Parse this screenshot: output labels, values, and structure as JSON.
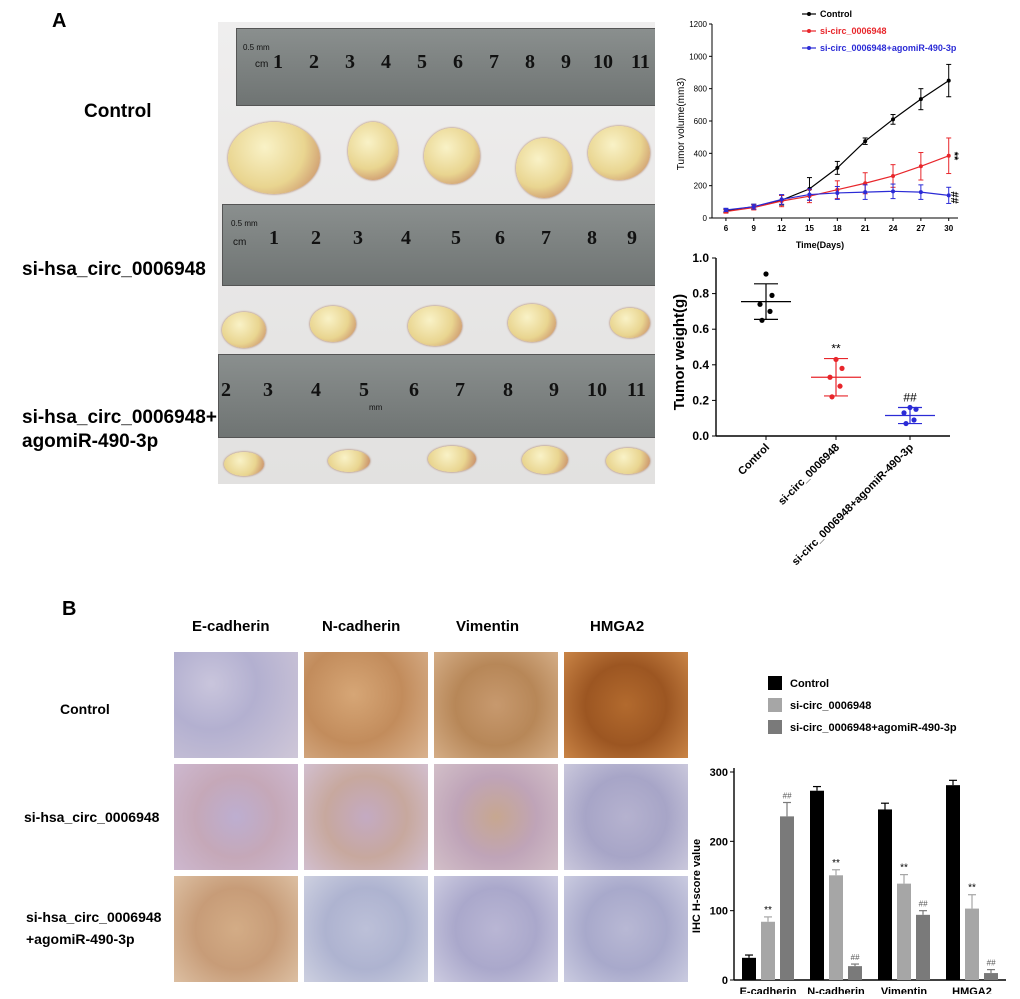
{
  "panels": {
    "a": "A",
    "b": "B"
  },
  "panel_a": {
    "row_labels": {
      "control": "Control",
      "si": "si-hsa_circ_0006948",
      "si_ago_line1": "si-hsa_circ_0006948+",
      "si_ago_line2": "agomiR-490-3p"
    },
    "ruler1": {
      "unit_mm": "0.5 mm",
      "unit_cm": "cm",
      "numbers": [
        "1",
        "2",
        "3",
        "4",
        "5",
        "6",
        "7",
        "8",
        "9",
        "10",
        "11"
      ]
    },
    "ruler2": {
      "unit_mm": "0.5 mm",
      "unit_cm": "cm",
      "numbers": [
        "1",
        "2",
        "3",
        "4",
        "5",
        "6",
        "7",
        "8",
        "9"
      ]
    },
    "ruler3": {
      "numbers": [
        "2",
        "3",
        "4",
        "5",
        "6",
        "7",
        "8",
        "9",
        "10",
        "11"
      ],
      "unit_mm": "mm"
    }
  },
  "panel_b": {
    "columns": [
      "E-cadherin",
      "N-cadherin",
      "Vimentin",
      "HMGA2"
    ],
    "row_labels": {
      "control": "Control",
      "si": "si-hsa_circ_0006948",
      "si_ago_line1": "si-hsa_circ_0006948",
      "si_ago_line2": "+agomiR-490-3p"
    }
  },
  "colors": {
    "control": "#000000",
    "si": "#e8262b",
    "si_ago": "#2b2bd6",
    "bar_control": "#000000",
    "bar_si": "#a6a6a6",
    "bar_si_ago": "#7a7a7a"
  },
  "chart_data": [
    {
      "id": "tumor_volume",
      "type": "line",
      "title": "",
      "xlabel": "Time(Days)",
      "ylabel": "Tumor volume(mm3)",
      "x": [
        6,
        9,
        12,
        15,
        18,
        21,
        24,
        27,
        30
      ],
      "xticks": [
        "6",
        "9",
        "12",
        "15",
        "18",
        "21",
        "24",
        "27",
        "30"
      ],
      "yticks": [
        "0",
        "200",
        "400",
        "600",
        "800",
        "1000",
        "1200"
      ],
      "ylim": [
        0,
        1200
      ],
      "series": [
        {
          "name": "Control",
          "values": [
            45,
            70,
            110,
            180,
            310,
            475,
            610,
            735,
            850
          ],
          "errors": [
            10,
            15,
            30,
            70,
            40,
            20,
            30,
            65,
            100
          ]
        },
        {
          "name": "si-circ_0006948",
          "values": [
            40,
            65,
            105,
            135,
            175,
            215,
            260,
            320,
            385
          ],
          "errors": [
            10,
            15,
            35,
            40,
            55,
            65,
            70,
            85,
            110
          ]
        },
        {
          "name": "si-circ_0006948+agomiR-490-3p",
          "values": [
            50,
            70,
            115,
            145,
            155,
            160,
            165,
            160,
            140
          ],
          "errors": [
            10,
            15,
            30,
            35,
            40,
            45,
            45,
            45,
            50
          ]
        }
      ],
      "annotations": [
        "**",
        "##"
      ]
    },
    {
      "id": "tumor_weight",
      "type": "scatter",
      "title": "",
      "ylabel": "Tumor weight(g)",
      "categories": [
        "Control",
        "si-circ_0006948",
        "si-circ_0006948+agomiR-490-3p"
      ],
      "yticks": [
        "0.0",
        "0.2",
        "0.4",
        "0.6",
        "0.8",
        "1.0"
      ],
      "ylim": [
        0,
        1.0
      ],
      "series": [
        {
          "name": "Control",
          "points": [
            0.91,
            0.79,
            0.74,
            0.7,
            0.65
          ],
          "mean": 0.755,
          "sd": 0.1
        },
        {
          "name": "si-circ_0006948",
          "points": [
            0.43,
            0.38,
            0.33,
            0.28,
            0.22
          ],
          "mean": 0.33,
          "sd": 0.105,
          "annotation": "**"
        },
        {
          "name": "si-circ_0006948+agomiR-490-3p",
          "points": [
            0.16,
            0.15,
            0.13,
            0.09,
            0.07
          ],
          "mean": 0.115,
          "sd": 0.045,
          "annotation": "##"
        }
      ]
    },
    {
      "id": "ihc_hscore",
      "type": "bar",
      "title": "",
      "ylabel": "IHC H-score value",
      "categories": [
        "E-cadherin",
        "N-cadherin",
        "Vimentin",
        "HMGA2"
      ],
      "yticks": [
        "0",
        "100",
        "200",
        "300"
      ],
      "ylim": [
        0,
        300
      ],
      "series": [
        {
          "name": "Control",
          "values": [
            32,
            273,
            246,
            281
          ],
          "errors": [
            4,
            6,
            9,
            7
          ],
          "annotations": [
            "",
            "",
            "",
            ""
          ]
        },
        {
          "name": "si-circ_0006948",
          "values": [
            84,
            151,
            139,
            103
          ],
          "errors": [
            7,
            8,
            13,
            20
          ],
          "annotations": [
            "**",
            "**",
            "**",
            "**"
          ]
        },
        {
          "name": "si-circ_0006948+agomiR-490-3p",
          "values": [
            236,
            20,
            94,
            10
          ],
          "errors": [
            20,
            3,
            6,
            5
          ],
          "annotations": [
            "##",
            "##",
            "##",
            "##"
          ]
        }
      ],
      "legend": [
        "Control",
        "si-circ_0006948",
        "si-circ_0006948+agomiR-490-3p"
      ]
    }
  ]
}
